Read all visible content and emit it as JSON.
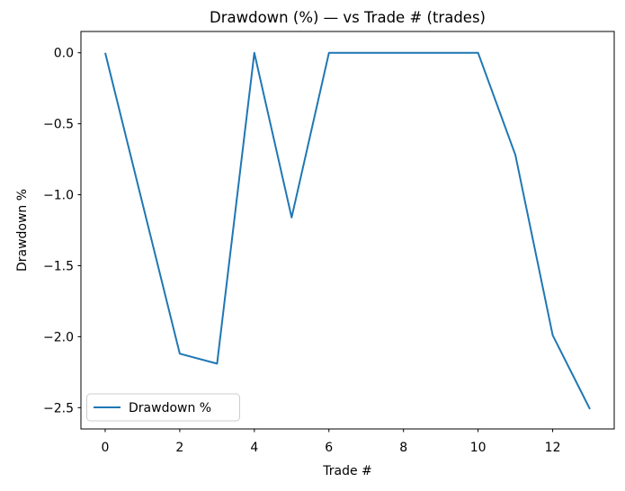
{
  "chart_data": {
    "type": "line",
    "title": "Drawdown (%) — vs Trade # (trades)",
    "xlabel": "Trade #",
    "ylabel": "Drawdown %",
    "x": [
      0,
      1,
      2,
      3,
      4,
      5,
      6,
      7,
      8,
      9,
      10,
      11,
      12,
      13
    ],
    "series": [
      {
        "name": "Drawdown %",
        "color": "#1f77b4",
        "values": [
          0.0,
          -1.06,
          -2.12,
          -2.19,
          0.0,
          -1.16,
          0.0,
          0.0,
          0.0,
          0.0,
          0.0,
          -0.72,
          -1.99,
          -2.51
        ]
      }
    ],
    "x_ticks": [
      0,
      2,
      4,
      6,
      8,
      10,
      12
    ],
    "x_tick_labels": [
      "0",
      "2",
      "4",
      "6",
      "8",
      "10",
      "12"
    ],
    "y_ticks": [
      0.0,
      -0.5,
      -1.0,
      -1.5,
      -2.0,
      -2.5
    ],
    "y_tick_labels": [
      "0.0",
      "−0.5",
      "−1.0",
      "−1.5",
      "−2.0",
      "−2.5"
    ],
    "xlim": [
      -0.65,
      13.65
    ],
    "ylim": [
      -2.65,
      0.15
    ],
    "grid": false,
    "legend_position": "lower left",
    "axis_color": "#000000",
    "background_color": "#ffffff"
  },
  "legend": {
    "label": "Drawdown %"
  }
}
